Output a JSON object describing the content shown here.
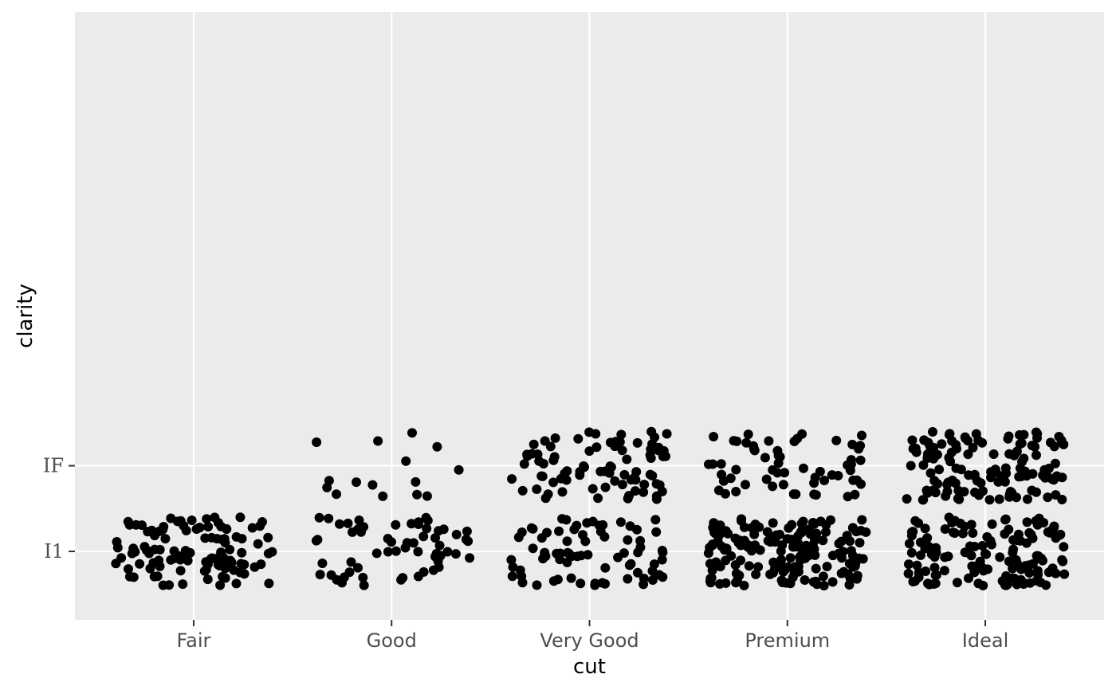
{
  "chart_data": {
    "type": "scatter",
    "title": "",
    "xlabel": "cut",
    "ylabel": "clarity",
    "x_categories": [
      "Fair",
      "Good",
      "Very Good",
      "Premium",
      "Ideal"
    ],
    "y_ticks": [
      "I1",
      "IF"
    ],
    "y_range": [
      0.2,
      7.3
    ],
    "jitter": {
      "x_width": 0.4,
      "y_height": 0.4
    },
    "grid": true,
    "legend": "none",
    "series": [
      {
        "x": "Fair",
        "clarity": "I1",
        "count": 110
      },
      {
        "x": "Good",
        "clarity": "I1",
        "count": 60
      },
      {
        "x": "Good",
        "clarity": "IF",
        "count": 15
      },
      {
        "x": "Very Good",
        "clarity": "I1",
        "count": 75
      },
      {
        "x": "Very Good",
        "clarity": "IF",
        "count": 85
      },
      {
        "x": "Premium",
        "clarity": "I1",
        "count": 170
      },
      {
        "x": "Premium",
        "clarity": "IF",
        "count": 60
      },
      {
        "x": "Ideal",
        "clarity": "I1",
        "count": 140
      },
      {
        "x": "Ideal",
        "clarity": "IF",
        "count": 130
      }
    ],
    "colors": {
      "panel_bg": "#ebebeb",
      "grid": "#ffffff",
      "point": "#000000",
      "tick": "#333333"
    }
  }
}
